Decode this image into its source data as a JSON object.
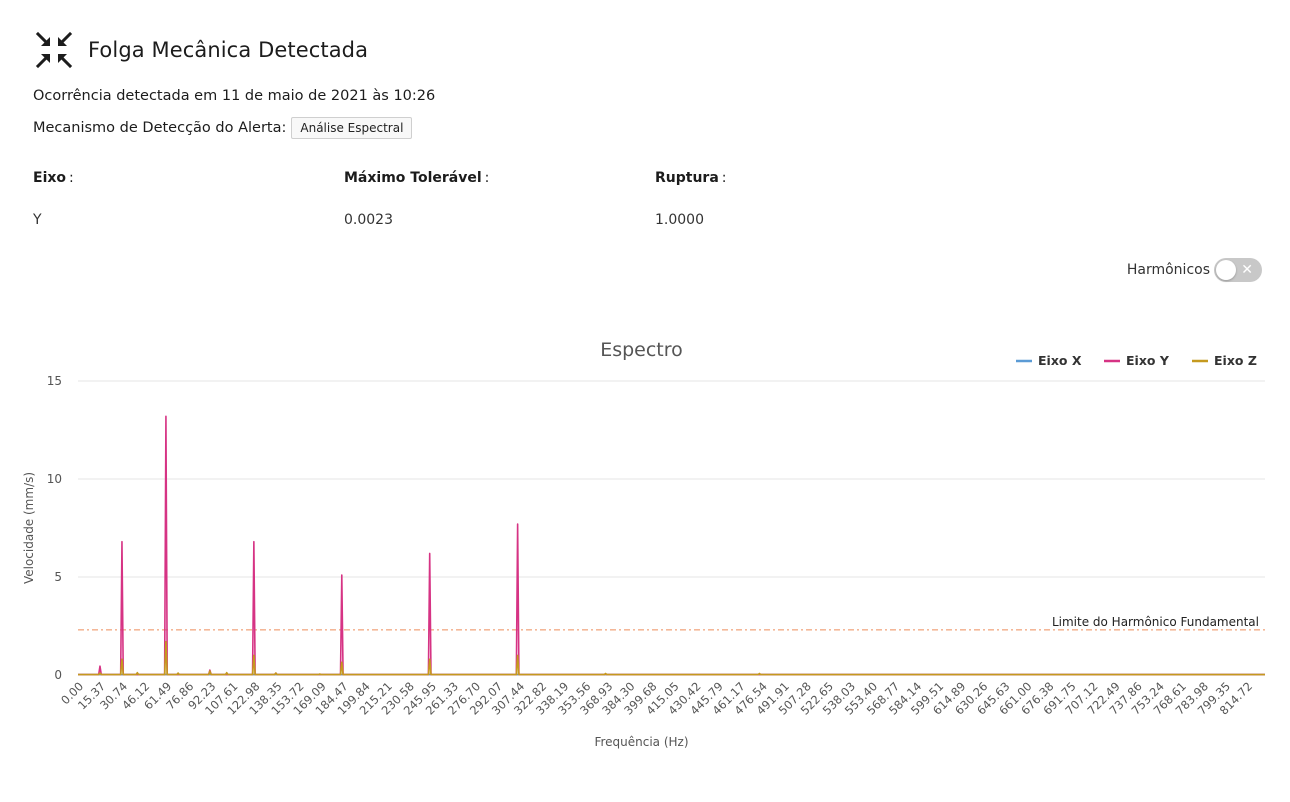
{
  "alert": {
    "icon": "compress-arrows-icon",
    "title": "Folga Mecânica Detectada",
    "occurrence": "Ocorrência detectada em 11 de maio de 2021 às 10:26",
    "mechanism_label": "Mecanismo de Detecção do Alerta:",
    "mechanism_value": "Análise Espectral"
  },
  "info": {
    "axis_label": "Eixo",
    "axis_value": "Y",
    "max_label": "Máximo Tolerável",
    "max_value": "0.0023",
    "rupture_label": "Ruptura",
    "rupture_value": "1.0000"
  },
  "harmonics_toggle": {
    "label": "Harmônicos",
    "checked": false
  },
  "chart_data": {
    "type": "line",
    "title": "Espectro",
    "xlabel": "Frequência (Hz)",
    "ylabel": "Velocidade (mm/s)",
    "ylim": [
      0,
      15
    ],
    "yticks": [
      0,
      5,
      10,
      15
    ],
    "grid": true,
    "legend_position": "top-right",
    "xticks": [
      "0.00",
      "15.37",
      "30.74",
      "46.12",
      "61.49",
      "76.86",
      "92.23",
      "107.61",
      "122.98",
      "138.35",
      "153.72",
      "169.09",
      "184.47",
      "199.84",
      "215.21",
      "230.58",
      "245.95",
      "261.33",
      "276.70",
      "292.07",
      "307.44",
      "322.82",
      "338.19",
      "353.56",
      "368.93",
      "384.30",
      "399.68",
      "415.05",
      "430.42",
      "445.79",
      "461.17",
      "476.54",
      "491.91",
      "507.28",
      "522.65",
      "538.03",
      "553.40",
      "568.77",
      "584.14",
      "599.51",
      "614.89",
      "630.26",
      "645.63",
      "661.00",
      "676.38",
      "691.75",
      "707.12",
      "722.49",
      "737.86",
      "753.24",
      "768.61",
      "783.98",
      "799.35",
      "814.72"
    ],
    "xmax": 830.09,
    "reference_line": {
      "label": "Limite do Harmônico Fundamental",
      "value": 2.3,
      "color": "#ee8c5a"
    },
    "series": [
      {
        "name": "Eixo X",
        "color": "#5b9bd5",
        "peaks": [
          [
            46.1,
            0.02
          ],
          [
            61.5,
            0.03
          ],
          [
            122.98,
            0.02
          ]
        ]
      },
      {
        "name": "Eixo Y",
        "color": "#d63384",
        "peaks": [
          [
            15.37,
            0.45
          ],
          [
            30.74,
            6.8
          ],
          [
            61.49,
            13.2
          ],
          [
            92.23,
            0.25
          ],
          [
            122.98,
            6.8
          ],
          [
            138.35,
            0.1
          ],
          [
            184.47,
            5.1
          ],
          [
            245.95,
            6.2
          ],
          [
            307.44,
            7.7
          ],
          [
            368.93,
            0.05
          ]
        ]
      },
      {
        "name": "Eixo Z",
        "color": "#c59a1f",
        "peaks": [
          [
            15.37,
            0.1
          ],
          [
            30.74,
            0.8
          ],
          [
            41.5,
            0.12
          ],
          [
            61.49,
            1.7
          ],
          [
            70.0,
            0.1
          ],
          [
            92.23,
            0.2
          ],
          [
            104.0,
            0.12
          ],
          [
            122.98,
            1.0
          ],
          [
            138.35,
            0.1
          ],
          [
            169.09,
            0.05
          ],
          [
            184.47,
            0.65
          ],
          [
            245.95,
            0.8
          ],
          [
            307.44,
            1.0
          ],
          [
            368.93,
            0.08
          ],
          [
            476.54,
            0.08
          ]
        ]
      }
    ]
  }
}
